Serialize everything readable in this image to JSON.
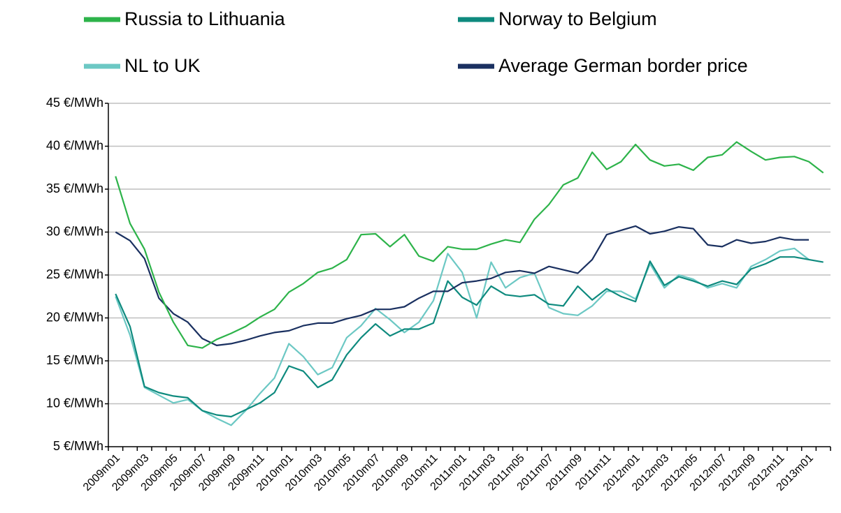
{
  "chart_data": {
    "type": "line",
    "categories": [
      "2009m01",
      null,
      "2009m03",
      null,
      "2009m05",
      null,
      "2009m07",
      null,
      "2009m09",
      null,
      "2009m11",
      null,
      "2010m01",
      null,
      "2010m03",
      null,
      "2010m05",
      null,
      "2010m07",
      null,
      "2010m09",
      null,
      "2010m11",
      null,
      "2011m01",
      null,
      "2011m03",
      null,
      "2011m05",
      null,
      "2011m07",
      null,
      "2011m09",
      null,
      "2011m11",
      null,
      "2012m01",
      null,
      "2012m03",
      null,
      "2012m05",
      null,
      "2012m07",
      null,
      "2012m09",
      null,
      "2012m11",
      null,
      "2013m01",
      null
    ],
    "series": [
      {
        "name": "Russia to Lithuania",
        "color": "#2db34a",
        "values": [
          36.5,
          31,
          28,
          23,
          19.5,
          16.8,
          16.5,
          17.5,
          18.2,
          19,
          20.1,
          21,
          23,
          24,
          25.3,
          25.8,
          26.8,
          29.7,
          29.8,
          28.3,
          29.7,
          27.2,
          26.6,
          28.3,
          28,
          28,
          28.6,
          29.1,
          28.8,
          31.5,
          33.2,
          35.5,
          36.3,
          39.3,
          37.3,
          38.2,
          40.2,
          38.4,
          37.7,
          37.9,
          37.2,
          38.7,
          39,
          40.5,
          39.4,
          38.4,
          38.7,
          38.8,
          38.2,
          36.9
        ]
      },
      {
        "name": "Norway to Belgium",
        "color": "#0e8a7e",
        "values": [
          22.8,
          19,
          12,
          11.3,
          10.9,
          10.7,
          9.2,
          8.7,
          8.5,
          9.3,
          10.1,
          11.3,
          14.4,
          13.8,
          11.9,
          12.8,
          15.7,
          17.7,
          19.3,
          17.9,
          18.7,
          18.7,
          19.4,
          24.3,
          22.4,
          21.5,
          23.7,
          22.7,
          22.5,
          22.7,
          21.6,
          21.4,
          23.7,
          22.1,
          23.4,
          22.5,
          21.9,
          26.6,
          23.8,
          24.8,
          24.3,
          23.7,
          24.3,
          23.9,
          25.7,
          26.3,
          27.1,
          27.1,
          26.8,
          26.5
        ]
      },
      {
        "name": "NL to UK",
        "color": "#6cc8c4",
        "values": [
          22.5,
          18,
          11.9,
          11,
          10.1,
          10.5,
          9.2,
          8.3,
          7.5,
          9.2,
          11.2,
          13,
          17,
          15.5,
          13.4,
          14.2,
          17.7,
          19.1,
          21.1,
          19.8,
          18.3,
          19.5,
          22,
          27.5,
          25.3,
          20,
          26.5,
          23.5,
          24.7,
          25.2,
          21.2,
          20.5,
          20.3,
          21.4,
          23.1,
          23.1,
          22.2,
          26.3,
          23.5,
          25,
          24.5,
          23.5,
          24,
          23.5,
          26,
          26.8,
          27.8,
          28.1,
          26.8,
          null
        ]
      },
      {
        "name": "Average German border price",
        "color": "#1a3060",
        "values": [
          30,
          29,
          26.9,
          22.3,
          20.5,
          19.5,
          17.6,
          16.8,
          17,
          17.4,
          17.9,
          18.3,
          18.5,
          19.1,
          19.4,
          19.4,
          19.9,
          20.3,
          21,
          21,
          21.3,
          22.3,
          23.1,
          23.1,
          24.1,
          24.3,
          24.6,
          25.3,
          25.5,
          25.2,
          26,
          25.6,
          25.2,
          26.8,
          29.7,
          30.2,
          30.7,
          29.8,
          30.1,
          30.6,
          30.4,
          28.5,
          28.3,
          29.1,
          28.7,
          28.9,
          29.4,
          29.1,
          29.1,
          null
        ]
      }
    ],
    "ylim": [
      5,
      45
    ],
    "yticks": [
      {
        "value": 5,
        "label": "5 €/MWh"
      },
      {
        "value": 10,
        "label": "10 €/MWh"
      },
      {
        "value": 15,
        "label": "15 €/MWh"
      },
      {
        "value": 20,
        "label": "20 €/MWh"
      },
      {
        "value": 25,
        "label": "25 €/MWh"
      },
      {
        "value": 30,
        "label": "30 €/MWh"
      },
      {
        "value": 35,
        "label": "35 €/MWh"
      },
      {
        "value": 40,
        "label": "40 €/MWh"
      },
      {
        "value": 45,
        "label": "45 €/MWh"
      }
    ],
    "grid": true,
    "legend": "top"
  }
}
